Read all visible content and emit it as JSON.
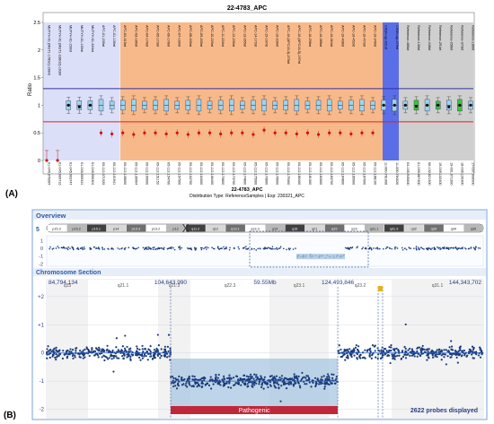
{
  "panel_a": {
    "label": "(A)",
    "title": "22-4783_APC",
    "ylabel": "Ratio",
    "yticks": [
      "2.5",
      "2",
      "1.5",
      "1",
      "0.5",
      "0"
    ],
    "ylim": [
      0,
      2.5
    ],
    "footer_line1": "22-4783_APC",
    "footer_line2": "Distribution Type: ReferenceSamples | Exp: 230321_APC",
    "chart_data": {
      "type": "box",
      "probe_groups": [
        {
          "name": "MUTYH",
          "color": "#d9dcf7"
        },
        {
          "name": "APC",
          "color": "#f8b98a"
        },
        {
          "name": "CRBN",
          "color": "#5a6ee8"
        },
        {
          "name": "Reference",
          "color": "#c9c9c9"
        }
      ],
      "probe_labels": [
        "MUTYH-01 (MUT1-178Sc)-198nt",
        "MUTYH-01 (MUT1-238G2)-193nt",
        "MUTYH-01-156nt",
        "MUTYH-01-139nt",
        "MUTYH-01-346nt",
        "APC-01-235nt",
        "APC-01-130nt",
        "APC-02-315nt",
        "APC-03-180nt",
        "APC-04-176nt",
        "APC-05-173nt",
        "APC-06-178nt",
        "APC-07-160nt",
        "APC-08-200nt",
        "APC-09-205nt",
        "APC-10-220nt",
        "APC-11-226nt",
        "APC-12-230nt",
        "APC-13-265nt",
        "APC-14-172nt",
        "APC-15-197nt",
        "APC-16-236nt",
        "APC-16 (APC16-3)-275nt",
        "APC-16 (APC16-5)-197nt",
        "APC-16-298nt",
        "APC-16-388nt",
        "APC-16-364nt",
        "APC-16-408nt",
        "APC-16-452nt",
        "APC-16-472nt",
        "APC-16-346nt",
        "CRBN-up-201nt",
        "CRBN-up-479nt",
        "Reference-485nt",
        "Reference-130nt",
        "Reference-448nt",
        "Reference-291nt",
        "Reference-258nt",
        "Reference-373nt",
        "Reference-186nt"
      ],
      "x_tick_labels": [
        "01-045.970687",
        "01-045.969716",
        "01-045.963747",
        "01-045.959321",
        "01-045.956301",
        "05-112.071925",
        "05-112.101941",
        "05-112.128600",
        "05-112.136904",
        "05-112.150000",
        "05-112.151152",
        "05-112.154700",
        "05-112.157500",
        "05-112.162700",
        "05-112.164000",
        "05-112.166400",
        "05-112.170800",
        "05-112.173700",
        "05-112.174800",
        "05-112.175900",
        "05-112.176800",
        "05-112.178000",
        "05-112.179300",
        "05-112.180400",
        "05-112.181500",
        "05-112.182600",
        "05-112.183700",
        "05-112.184800",
        "05-112.185900",
        "05-112.187000",
        "05-112.188100",
        "11-000.781008",
        "11-000.784020",
        "04-165.945600",
        "01-039.887300",
        "06-132.821400",
        "19-049.132400",
        "19-001.071200",
        "18-036.120300",
        "17-037.908900"
      ],
      "sample_ratio": [
        0.0,
        0.0,
        1.0,
        0.97,
        1.0,
        0.5,
        0.48,
        0.5,
        0.47,
        0.5,
        0.5,
        0.48,
        0.5,
        0.47,
        0.5,
        0.5,
        0.48,
        0.5,
        0.5,
        0.47,
        0.55,
        0.5,
        0.5,
        0.48,
        0.5,
        0.47,
        0.5,
        0.5,
        0.48,
        0.5,
        0.5,
        1.0,
        1.0,
        1.0,
        0.98,
        1.0,
        1.0,
        0.97,
        1.0,
        1.0
      ],
      "reference_band": {
        "upper": 1.3,
        "lower": 0.7
      },
      "reference_median": 1.0
    }
  },
  "panel_b": {
    "label": "(B)",
    "overview_title": "Overview",
    "section_title": "Chromosome Section",
    "chrom_number": "5",
    "ideogram_bands": [
      "p15.3",
      "p15.2",
      "p15.1",
      "p14",
      "p13.3",
      "p13.2",
      "p12",
      "q11.2",
      "q12",
      "q13.1",
      "q13.3",
      "q14",
      "q15",
      "q21",
      "q22",
      "q23",
      "q31.1",
      "q31.3",
      "q32",
      "q33",
      "q34",
      "q35"
    ],
    "overview_yticks": [
      "1",
      "0",
      "-1",
      "-2"
    ],
    "coords": [
      "84,794,134",
      "104,643,990",
      "59.55Mb",
      "124,493,846",
      "144,343,702"
    ],
    "section_bands": [
      "q15",
      "q21.1",
      "q21.3",
      "q22.3",
      "q23.1",
      "q23.2",
      "q31.1"
    ],
    "section_yticks": [
      "+2",
      "+1",
      "0",
      "-1",
      "-2"
    ],
    "pathogenic_label": "Pathogenic",
    "probes_displayed": "2622 probes displayed",
    "chart_data": {
      "type": "scatter",
      "x_range_bp": [
        84794134,
        144343702
      ],
      "ylim": [
        -2.3,
        2.6
      ],
      "segments": [
        {
          "start_bp": 84794134,
          "end_bp": 101700000,
          "log2": 0.0
        },
        {
          "start_bp": 101700000,
          "end_bp": 124500000,
          "log2": -1.0
        },
        {
          "start_bp": 124500000,
          "end_bp": 144343702,
          "log2": 0.0
        }
      ],
      "pathogenic_region": {
        "start_bp": 101700000,
        "end_bp": 124500000
      },
      "probe_count": 2622
    }
  },
  "colors": {
    "mutyh_bg": "#dcdff8",
    "apc_bg": "#f8b98a",
    "crbn_bg": "#5a6ee8",
    "ref_bg": "#cfcfcf",
    "upper_line": "#3030a0",
    "lower_line": "#e02020",
    "sample_point": "#d01010",
    "box_fill": "#9fd3ec",
    "green_box": "#3cc43c",
    "probe_dot": "#1a3c7a",
    "loss_fill": "#a8c6e0",
    "pathogenic": "#c0283a",
    "panel_border": "#7aa0d8"
  }
}
